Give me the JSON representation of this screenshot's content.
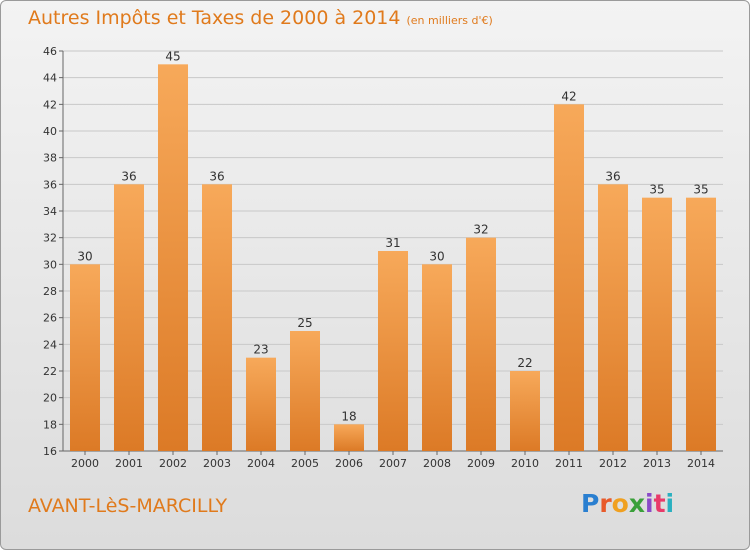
{
  "header": {
    "title": "Autres Impôts et Taxes de 2000 à 2014",
    "subtitle": "(en milliers d'€)"
  },
  "footer": {
    "town": "AVANT-LèS-MARCILLY",
    "logo": "Proxiti",
    "logo_colors": [
      "#2a7fd0",
      "#e85a2a",
      "#f0a020",
      "#3aa03a",
      "#8a4ac8",
      "#e83a6a",
      "#2ab0c0"
    ]
  },
  "colors": {
    "bar_light": "#f7a95a",
    "bar_dark": "#dc7a26",
    "accent": "#e07a1c"
  },
  "chart_data": {
    "type": "bar",
    "title": "Autres Impôts et Taxes de 2000 à 2014",
    "subtitle": "(en milliers d'€)",
    "categories": [
      "2000",
      "2001",
      "2002",
      "2003",
      "2004",
      "2005",
      "2006",
      "2007",
      "2008",
      "2009",
      "2010",
      "2011",
      "2012",
      "2013",
      "2014"
    ],
    "values": [
      30,
      36,
      45,
      36,
      23,
      25,
      18,
      31,
      30,
      32,
      22,
      42,
      36,
      35,
      35
    ],
    "ylim": [
      16,
      46
    ],
    "yticks": [
      16,
      18,
      20,
      22,
      24,
      26,
      28,
      30,
      32,
      34,
      36,
      38,
      40,
      42,
      44,
      46
    ],
    "grid": "horizontal",
    "legend": "none"
  }
}
